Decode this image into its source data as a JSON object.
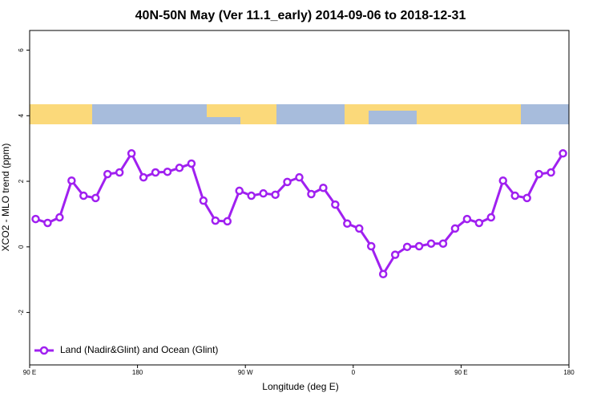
{
  "chart_data": {
    "type": "line",
    "title": "40N-50N May (Ver 11.1_early)   2014-09-06 to 2018-12-31",
    "x_label": "Longitude (deg E)",
    "y_label": "XCO2 - MLO trend (ppm)",
    "x": [
      95,
      105,
      115,
      125,
      135,
      145,
      155,
      165,
      175,
      185,
      195,
      205,
      215,
      225,
      235,
      245,
      255,
      265,
      275,
      285,
      295,
      305,
      315,
      325,
      335,
      345,
      355,
      365,
      375,
      385,
      395,
      405,
      415,
      425,
      435,
      445,
      455,
      465,
      475,
      485,
      495,
      505,
      515,
      525,
      535
    ],
    "series": [
      {
        "name": "Land (Nadir&Glint) and Ocean (Glint)",
        "color": "#a020f0",
        "values": [
          0.85,
          0.73,
          0.9,
          2.02,
          1.56,
          1.49,
          2.22,
          2.27,
          2.85,
          2.12,
          2.27,
          2.29,
          2.41,
          2.54,
          1.41,
          0.8,
          0.78,
          1.71,
          1.56,
          1.63,
          1.59,
          1.98,
          2.12,
          1.61,
          1.8,
          1.29,
          0.71,
          0.56,
          0.02,
          -0.83,
          -0.24,
          0.0,
          0.02,
          0.1,
          0.1,
          0.56,
          0.85,
          0.73,
          0.9,
          2.02,
          1.56,
          1.49,
          2.22,
          2.27,
          2.85
        ]
      }
    ],
    "xlim": [
      90,
      540
    ],
    "xticks": [
      {
        "value": 90,
        "label": "90 E"
      },
      180,
      {
        "value": 270,
        "label": "90 W"
      },
      {
        "value": 360,
        "label": "0"
      },
      {
        "value": 450,
        "label": "90 E"
      },
      {
        "value": 540,
        "label": "180"
      }
    ],
    "ylim": [
      -3.6,
      6.6
    ],
    "yticks": [
      -2,
      0,
      2,
      4,
      6
    ],
    "legend": "lower left"
  }
}
